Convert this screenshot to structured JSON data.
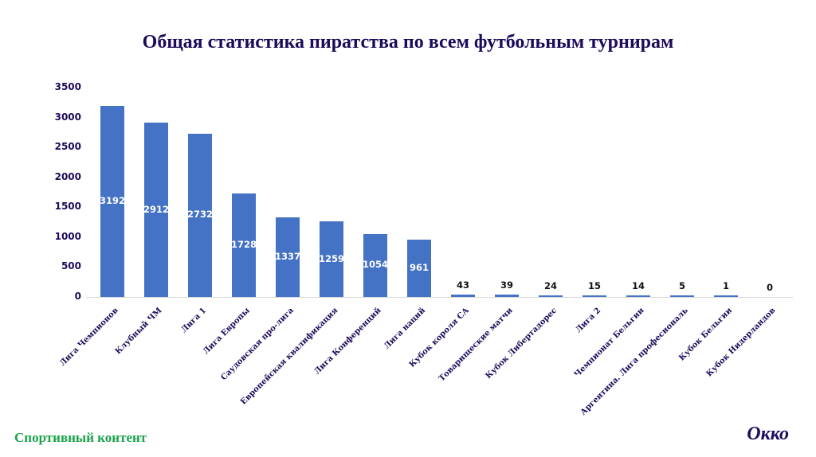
{
  "title": "Общая статистика пиратства по всем футбольным турнирам",
  "footer": {
    "left": "Спортивный контент",
    "right": "Окко"
  },
  "colors": {
    "bar": "#4472c4",
    "title": "#1e0a5a",
    "footer_left": "#1aa34a"
  },
  "chart_data": {
    "type": "bar",
    "title": "Общая статистика пиратства по всем футбольным турнирам",
    "xlabel": "",
    "ylabel": "",
    "ylim": [
      0,
      3500
    ],
    "yticks": [
      0,
      500,
      1000,
      1500,
      2000,
      2500,
      3000,
      3500
    ],
    "grid": false,
    "legend": null,
    "categories": [
      "Лига Чемпионов",
      "Клубный ЧМ",
      "Лига 1",
      "Лига Европы",
      "Саудовская про-лига",
      "Европейская квалификация",
      "Лига Конференций",
      "Лига наций",
      "Кубок короля СА",
      "Товарищеские матчи",
      "Кубок Либертадорес",
      "Лига 2",
      "Чемпионат Бельгии",
      "Аргентина. Лига професиональ",
      "Кубок Бельгии",
      "Кубок Нидерландов"
    ],
    "values": [
      3192,
      2912,
      2732,
      1728,
      1337,
      1259,
      1054,
      961,
      43,
      39,
      24,
      15,
      14,
      5,
      1,
      0
    ]
  }
}
